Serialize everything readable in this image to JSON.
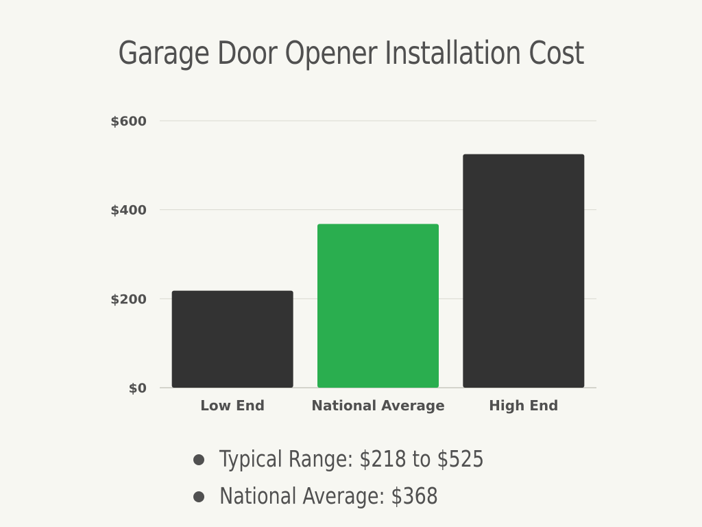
{
  "title": "Garage Door Opener Installation Cost",
  "colors": {
    "background": "#f7f7f2",
    "text": "#505050",
    "dark_bar": "#333333",
    "highlight_bar": "#2aae4f",
    "grid": "#d8d8d0"
  },
  "chart_data": {
    "type": "bar",
    "title": "Garage Door Opener Installation Cost",
    "xlabel": "",
    "ylabel": "",
    "categories": [
      "Low End",
      "National Average",
      "High End"
    ],
    "values": [
      218,
      368,
      525
    ],
    "bar_colors": [
      "#333333",
      "#2aae4f",
      "#333333"
    ],
    "ylim": [
      0,
      600
    ],
    "yticks": [
      0,
      200,
      400,
      600
    ],
    "ytick_labels": [
      "$0",
      "$200",
      "$400",
      "$600"
    ],
    "grid": true
  },
  "notes": [
    "Typical Range: $218 to $525",
    "National Average: $368"
  ]
}
